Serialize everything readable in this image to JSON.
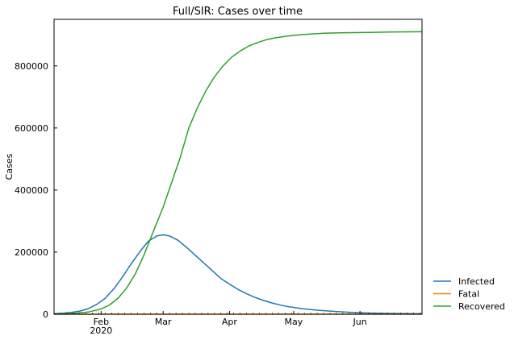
{
  "chart_data": {
    "type": "line",
    "title": "Full/SIR: Cases over time",
    "xlabel": "",
    "ylabel": "Cases",
    "x_range": [
      "2020-01-10",
      "2020-06-30"
    ],
    "ylim": [
      0,
      950000
    ],
    "grid": false,
    "legend_position": "outside-right-bottom",
    "x_ticks": [
      {
        "date": "2020-02-01",
        "label": "Feb",
        "sublabel": "2020"
      },
      {
        "date": "2020-03-01",
        "label": "Mar",
        "sublabel": ""
      },
      {
        "date": "2020-04-01",
        "label": "Apr",
        "sublabel": ""
      },
      {
        "date": "2020-05-01",
        "label": "May",
        "sublabel": ""
      },
      {
        "date": "2020-06-01",
        "label": "Jun",
        "sublabel": ""
      }
    ],
    "y_ticks": [
      {
        "value": 0,
        "label": "0"
      },
      {
        "value": 200000,
        "label": "200000"
      },
      {
        "value": 400000,
        "label": "400000"
      },
      {
        "value": 600000,
        "label": "600000"
      },
      {
        "value": 800000,
        "label": "800000"
      }
    ],
    "series": [
      {
        "name": "Infected",
        "color": "#1f77b4",
        "points": [
          [
            "2020-01-10",
            2000
          ],
          [
            "2020-01-14",
            3500
          ],
          [
            "2020-01-18",
            6000
          ],
          [
            "2020-01-22",
            10000
          ],
          [
            "2020-01-26",
            18000
          ],
          [
            "2020-01-30",
            32000
          ],
          [
            "2020-02-03",
            52000
          ],
          [
            "2020-02-07",
            82000
          ],
          [
            "2020-02-11",
            120000
          ],
          [
            "2020-02-15",
            162000
          ],
          [
            "2020-02-19",
            200000
          ],
          [
            "2020-02-23",
            235000
          ],
          [
            "2020-02-27",
            252000
          ],
          [
            "2020-03-01",
            256000
          ],
          [
            "2020-03-04",
            252000
          ],
          [
            "2020-03-08",
            238000
          ],
          [
            "2020-03-12",
            215000
          ],
          [
            "2020-03-16",
            190000
          ],
          [
            "2020-03-20",
            165000
          ],
          [
            "2020-03-24",
            140000
          ],
          [
            "2020-03-28",
            115000
          ],
          [
            "2020-04-01",
            97000
          ],
          [
            "2020-04-05",
            80000
          ],
          [
            "2020-04-09",
            66000
          ],
          [
            "2020-04-13",
            54000
          ],
          [
            "2020-04-17",
            44000
          ],
          [
            "2020-04-21",
            36000
          ],
          [
            "2020-04-25",
            29000
          ],
          [
            "2020-04-29",
            24000
          ],
          [
            "2020-05-05",
            18000
          ],
          [
            "2020-05-12",
            13000
          ],
          [
            "2020-05-20",
            9000
          ],
          [
            "2020-05-28",
            6000
          ],
          [
            "2020-06-05",
            4000
          ],
          [
            "2020-06-15",
            2500
          ],
          [
            "2020-06-30",
            1500
          ]
        ]
      },
      {
        "name": "Fatal",
        "color": "#ff7f0e",
        "points": [
          [
            "2020-01-10",
            0
          ],
          [
            "2020-02-01",
            0
          ],
          [
            "2020-03-01",
            0
          ],
          [
            "2020-04-01",
            0
          ],
          [
            "2020-05-01",
            0
          ],
          [
            "2020-06-01",
            0
          ],
          [
            "2020-06-30",
            0
          ]
        ]
      },
      {
        "name": "Recovered",
        "color": "#2ca02c",
        "points": [
          [
            "2020-01-10",
            0
          ],
          [
            "2020-01-18",
            2000
          ],
          [
            "2020-01-26",
            7000
          ],
          [
            "2020-02-01",
            17000
          ],
          [
            "2020-02-05",
            30000
          ],
          [
            "2020-02-09",
            52000
          ],
          [
            "2020-02-13",
            85000
          ],
          [
            "2020-02-17",
            130000
          ],
          [
            "2020-02-21",
            190000
          ],
          [
            "2020-02-25",
            260000
          ],
          [
            "2020-03-01",
            345000
          ],
          [
            "2020-03-05",
            425000
          ],
          [
            "2020-03-09",
            505000
          ],
          [
            "2020-03-13",
            600000
          ],
          [
            "2020-03-17",
            665000
          ],
          [
            "2020-03-21",
            720000
          ],
          [
            "2020-03-25",
            765000
          ],
          [
            "2020-03-29",
            800000
          ],
          [
            "2020-04-02",
            828000
          ],
          [
            "2020-04-06",
            848000
          ],
          [
            "2020-04-10",
            864000
          ],
          [
            "2020-04-14",
            875000
          ],
          [
            "2020-04-18",
            884000
          ],
          [
            "2020-04-22",
            890000
          ],
          [
            "2020-04-28",
            896000
          ],
          [
            "2020-05-05",
            901000
          ],
          [
            "2020-05-15",
            905000
          ],
          [
            "2020-05-25",
            907000
          ],
          [
            "2020-06-05",
            908000
          ],
          [
            "2020-06-15",
            909000
          ],
          [
            "2020-06-30",
            910000
          ]
        ]
      }
    ]
  }
}
